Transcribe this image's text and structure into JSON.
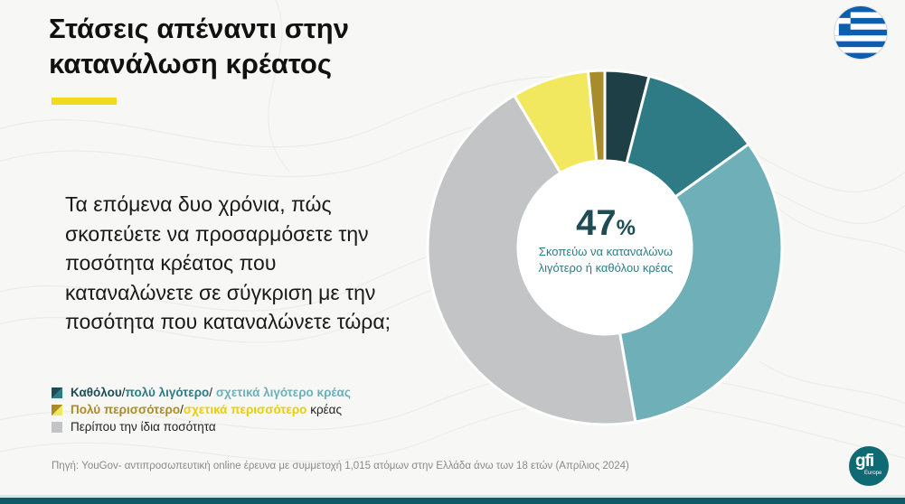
{
  "title": "Στάσεις απέναντι στην κατανάλωση κρέατος",
  "question": "Τα επόμενα δυο χρόνια, πώς σκοπεύετε να προσαρμόσετε την ποσότητα κρέατος που καταναλώνετε σε σύγκριση με την ποσότητα που καταναλώνετε τώρα;",
  "center": {
    "value": "47",
    "unit": "%",
    "label": "Σκοπεύω να καταναλώνω λιγότερο ή καθόλου κρέας"
  },
  "legend": {
    "row1": {
      "a": "Καθόλου",
      "sep1": "/",
      "b": "πολύ λιγότερο",
      "sep2": "/ ",
      "c": "σχετικά λιγότερο κρέας"
    },
    "row2": {
      "a": "Πολύ περισσότερο",
      "sep1": "/",
      "b": "σχετικά περισσότερο",
      "c": " κρέας"
    },
    "row3": {
      "a": "Περίπου την ίδια ποσότητα"
    }
  },
  "source": "Πηγή: YouGov- αντιπροσωπευτική online έρευνα με συμμετοχή 1,015 ατόμων στην Ελλάδα άνω των 18 ετών (Απρίλιος 2024)",
  "logo": {
    "main": "gfi",
    "sub": "Europe"
  },
  "icons": {
    "flag": "greece-flag-icon"
  },
  "colors": {
    "accent_yellow": "#f2da1f",
    "brand_teal": "#0f5a64",
    "dark_teal": "#1e4c55",
    "mid_teal": "#2e7b85",
    "light_teal": "#6fb0b8",
    "gold": "#a88c2a",
    "yellow": "#f2e860",
    "grey": "#c3c4c6"
  },
  "chart_data": {
    "type": "pie",
    "donut": true,
    "categories": [
      "Καθόλου",
      "πολύ λιγότερο",
      "σχετικά λιγότερο κρέας",
      "Περίπου την ίδια ποσότητα",
      "σχετικά περισσότερο",
      "Πολύ περισσότερο"
    ],
    "values": [
      4,
      11,
      32,
      44,
      7,
      1.5
    ],
    "colors": [
      "#1e3f46",
      "#2e7b85",
      "#6fb0b8",
      "#c3c4c6",
      "#f2e860",
      "#a88c2a"
    ]
  }
}
